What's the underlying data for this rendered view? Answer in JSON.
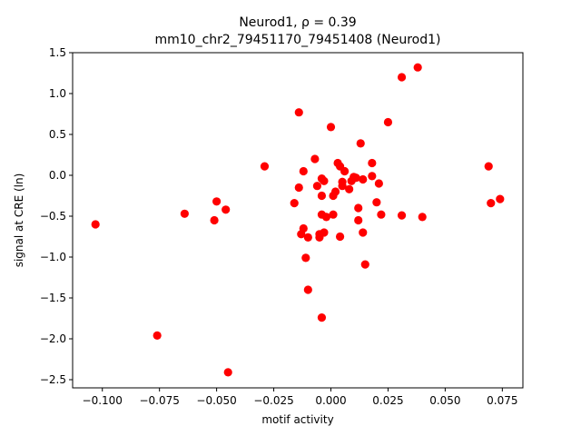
{
  "chart_data": {
    "type": "scatter",
    "title_line1": "Neurod1, ρ = 0.39",
    "title_line2": "mm10_chr2_79451170_79451408 (Neurod1)",
    "xlabel": "motif activity",
    "ylabel": "signal at CRE (ln)",
    "xlim": [
      -0.113,
      0.084
    ],
    "ylim": [
      -2.6,
      1.5
    ],
    "xticks": [
      -0.1,
      -0.075,
      -0.05,
      -0.025,
      0.0,
      0.025,
      0.05,
      0.075
    ],
    "xtick_labels": [
      "−0.100",
      "−0.075",
      "−0.050",
      "−0.025",
      "0.000",
      "0.025",
      "0.050",
      "0.075"
    ],
    "yticks": [
      -2.5,
      -2.0,
      -1.5,
      -1.0,
      -0.5,
      0.0,
      0.5,
      1.0,
      1.5
    ],
    "ytick_labels": [
      "−2.5",
      "−2.0",
      "−1.5",
      "−1.0",
      "−0.5",
      "0.0",
      "0.5",
      "1.0",
      "1.5"
    ],
    "grid": false,
    "marker_color": "#ff0000",
    "points": [
      {
        "x": -0.103,
        "y": -0.6
      },
      {
        "x": -0.076,
        "y": -1.96
      },
      {
        "x": -0.064,
        "y": -0.47
      },
      {
        "x": -0.051,
        "y": -0.55
      },
      {
        "x": -0.05,
        "y": -0.32
      },
      {
        "x": -0.046,
        "y": -0.42
      },
      {
        "x": -0.045,
        "y": -2.41
      },
      {
        "x": -0.029,
        "y": 0.11
      },
      {
        "x": -0.016,
        "y": -0.34
      },
      {
        "x": -0.014,
        "y": 0.77
      },
      {
        "x": -0.014,
        "y": -0.15
      },
      {
        "x": -0.013,
        "y": -0.72
      },
      {
        "x": -0.012,
        "y": -0.65
      },
      {
        "x": -0.012,
        "y": 0.05
      },
      {
        "x": -0.011,
        "y": -1.01
      },
      {
        "x": -0.01,
        "y": -1.4
      },
      {
        "x": -0.01,
        "y": -0.76
      },
      {
        "x": -0.007,
        "y": 0.2
      },
      {
        "x": -0.006,
        "y": -0.13
      },
      {
        "x": -0.005,
        "y": -0.76
      },
      {
        "x": -0.005,
        "y": -0.72
      },
      {
        "x": -0.004,
        "y": -0.25
      },
      {
        "x": -0.004,
        "y": -0.04
      },
      {
        "x": -0.004,
        "y": -0.48
      },
      {
        "x": -0.004,
        "y": -1.74
      },
      {
        "x": -0.003,
        "y": -0.07
      },
      {
        "x": -0.003,
        "y": -0.7
      },
      {
        "x": -0.002,
        "y": -0.51
      },
      {
        "x": 0.0,
        "y": 0.59
      },
      {
        "x": 0.001,
        "y": -0.25
      },
      {
        "x": 0.001,
        "y": -0.48
      },
      {
        "x": 0.002,
        "y": -0.2
      },
      {
        "x": 0.003,
        "y": 0.15
      },
      {
        "x": 0.004,
        "y": 0.11
      },
      {
        "x": 0.004,
        "y": -0.75
      },
      {
        "x": 0.005,
        "y": -0.08
      },
      {
        "x": 0.005,
        "y": -0.13
      },
      {
        "x": 0.006,
        "y": 0.05
      },
      {
        "x": 0.008,
        "y": -0.17
      },
      {
        "x": 0.009,
        "y": -0.07
      },
      {
        "x": 0.01,
        "y": -0.02
      },
      {
        "x": 0.011,
        "y": -0.03
      },
      {
        "x": 0.012,
        "y": -0.4
      },
      {
        "x": 0.012,
        "y": -0.55
      },
      {
        "x": 0.013,
        "y": 0.39
      },
      {
        "x": 0.014,
        "y": -0.05
      },
      {
        "x": 0.014,
        "y": -0.7
      },
      {
        "x": 0.015,
        "y": -1.09
      },
      {
        "x": 0.018,
        "y": 0.15
      },
      {
        "x": 0.018,
        "y": -0.01
      },
      {
        "x": 0.02,
        "y": -0.33
      },
      {
        "x": 0.021,
        "y": -0.1
      },
      {
        "x": 0.022,
        "y": -0.48
      },
      {
        "x": 0.025,
        "y": 0.65
      },
      {
        "x": 0.031,
        "y": 1.2
      },
      {
        "x": 0.031,
        "y": -0.49
      },
      {
        "x": 0.038,
        "y": 1.32
      },
      {
        "x": 0.04,
        "y": -0.51
      },
      {
        "x": 0.069,
        "y": 0.11
      },
      {
        "x": 0.07,
        "y": -0.34
      },
      {
        "x": 0.074,
        "y": -0.29
      }
    ]
  }
}
